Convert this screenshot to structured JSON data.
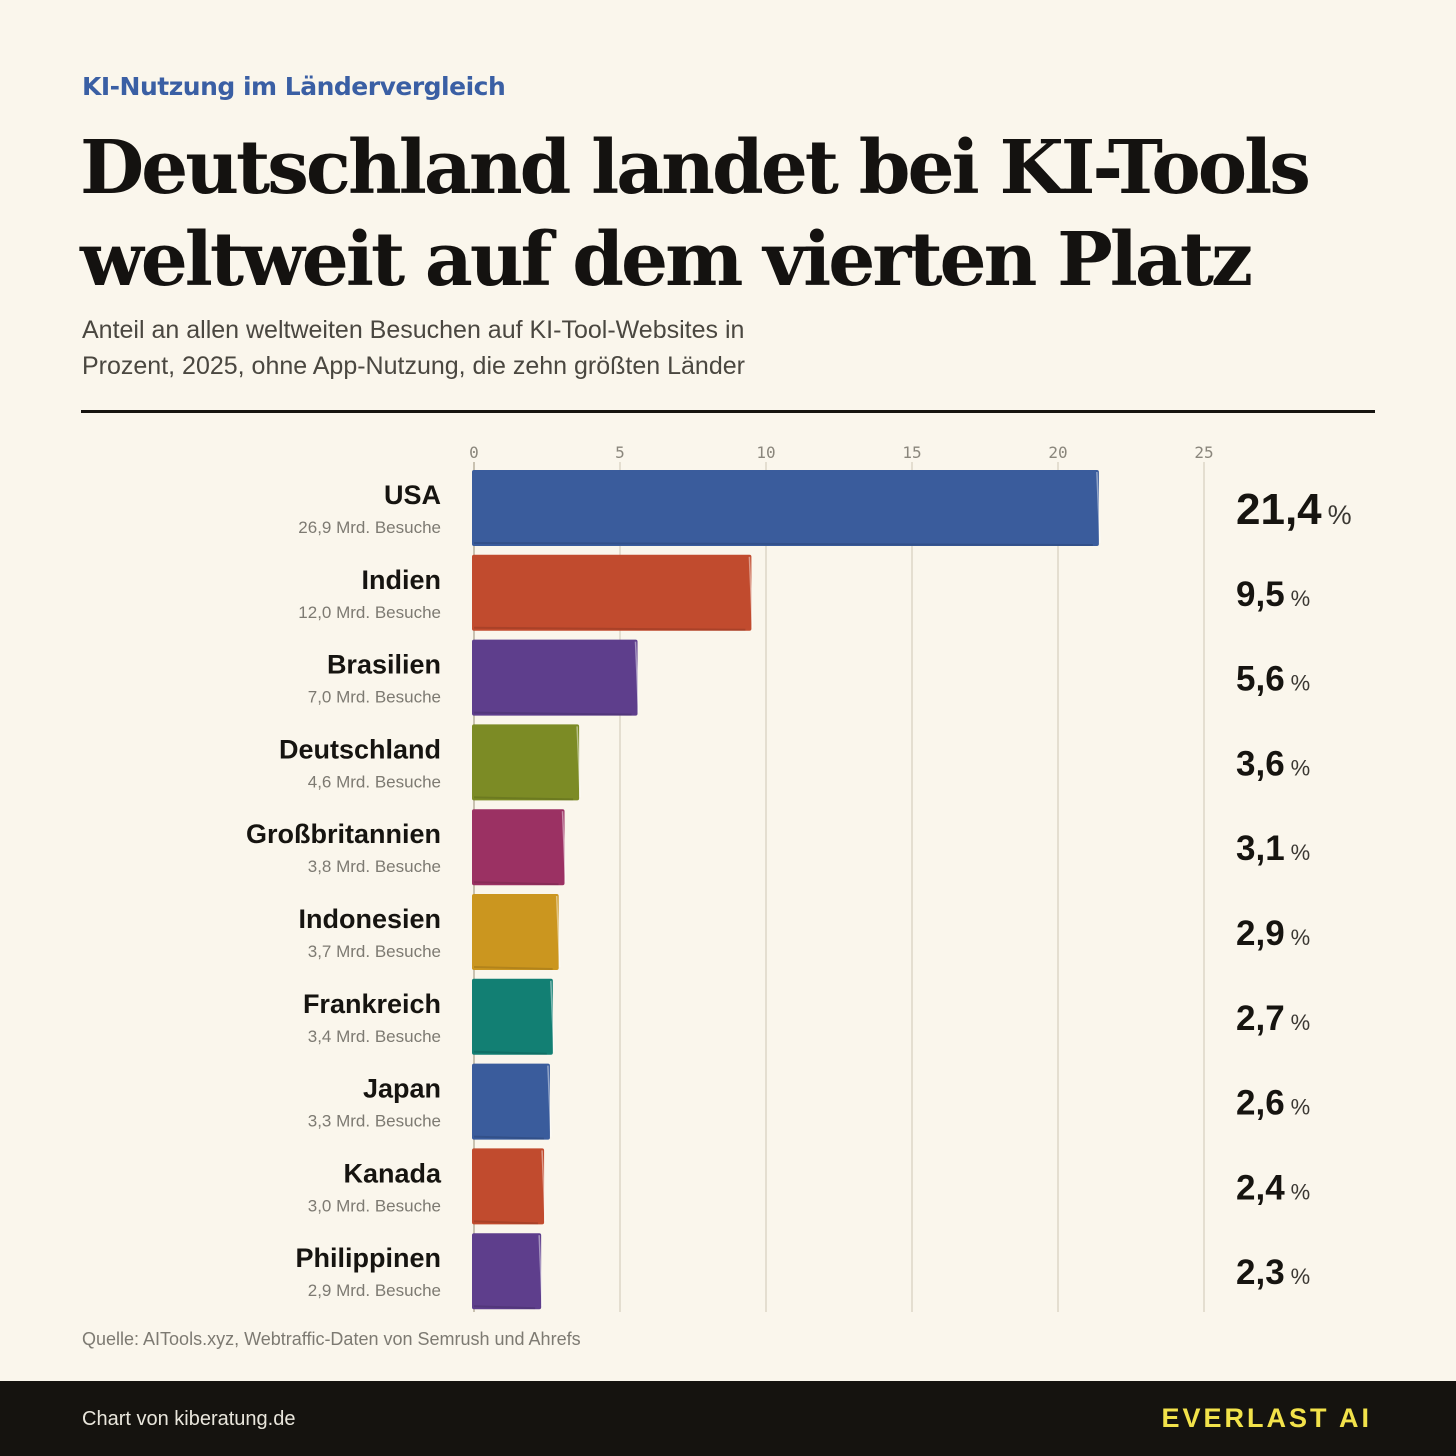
{
  "header": {
    "kicker": "KI-Nutzung im Ländervergleich",
    "title": "Deutschland landet bei KI-Tools weltweit auf dem vierten Platz",
    "subtitle": "Anteil an allen weltweiten Besuchen auf KI-Tool-Websites in Prozent, 2025, ohne App-Nutzung, die zehn größten Länder"
  },
  "chart_data": {
    "type": "bar",
    "orientation": "horizontal",
    "xlim": [
      0,
      25
    ],
    "xticks": [
      0,
      5,
      10,
      15,
      20,
      25
    ],
    "grid": true,
    "value_unit": "%",
    "categories": [
      "USA",
      "Indien",
      "Brasilien",
      "Deutschland",
      "Großbritannien",
      "Indonesien",
      "Frankreich",
      "Japan",
      "Kanada",
      "Philippinen"
    ],
    "values": [
      21.4,
      9.5,
      5.6,
      3.6,
      3.1,
      2.9,
      2.7,
      2.6,
      2.4,
      2.3
    ],
    "value_labels": [
      "21,4",
      "9,5",
      "5,6",
      "3,6",
      "3,1",
      "2,9",
      "2,7",
      "2,6",
      "2,4",
      "2,3"
    ],
    "sublabels": [
      "26,9 Mrd. Besuche",
      "12,0 Mrd. Besuche",
      "7,0 Mrd. Besuche",
      "4,6 Mrd. Besuche",
      "3,8 Mrd. Besuche",
      "3,7 Mrd. Besuche",
      "3,4 Mrd. Besuche",
      "3,3 Mrd. Besuche",
      "3,0 Mrd. Besuche",
      "2,9 Mrd. Besuche"
    ],
    "colors": [
      "#3a5c9c",
      "#c14b2e",
      "#5e3e8c",
      "#7c8b25",
      "#9b3163",
      "#cb961f",
      "#127f73",
      "#3a5c9c",
      "#c14b2e",
      "#5e3e8c"
    ]
  },
  "source": "Quelle: AITools.xyz, Webtraffic-Daten von Semrush und Ahrefs",
  "footer": {
    "credit": "Chart von kiberatung.de",
    "brand": "EVERLAST AI"
  }
}
